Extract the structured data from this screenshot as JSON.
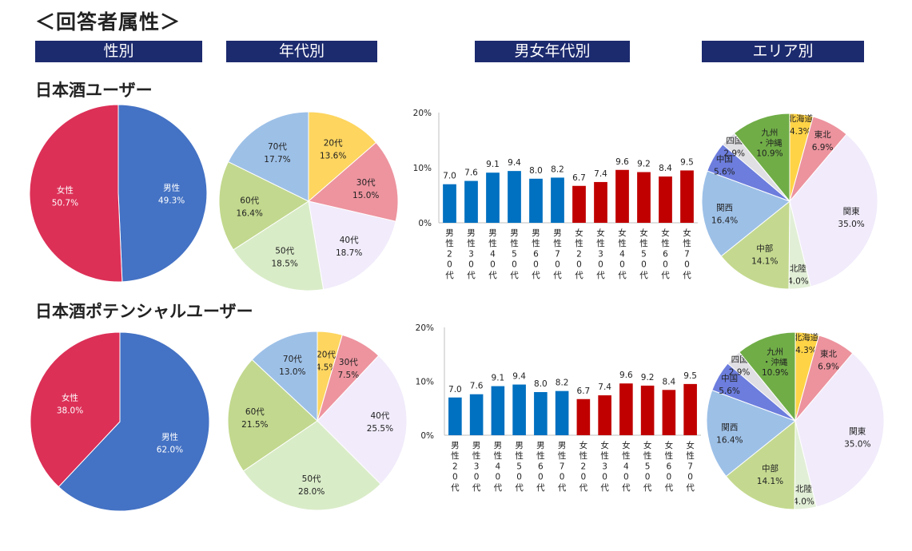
{
  "title": "＜回答者属性＞",
  "headers": {
    "gender": "性別",
    "age": "年代別",
    "gender_age": "男女年代別",
    "area": "エリア別"
  },
  "sections": [
    {
      "name": "日本酒ユーザー",
      "gender": {
        "type": "pie",
        "slices": [
          {
            "label": "男性",
            "value": 49.3,
            "pct": "49.3%",
            "color": "#4472c4"
          },
          {
            "label": "女性",
            "value": 50.7,
            "pct": "50.7%",
            "color": "#dc3057"
          }
        ]
      },
      "age": {
        "type": "pie",
        "slices": [
          {
            "label": "20代",
            "value": 13.6,
            "pct": "13.6%",
            "color": "#fdd55f"
          },
          {
            "label": "30代",
            "value": 15.0,
            "pct": "15.0%",
            "color": "#ed949f"
          },
          {
            "label": "40代",
            "value": 18.7,
            "pct": "18.7%",
            "color": "#f1ebfb"
          },
          {
            "label": "50代",
            "value": 18.5,
            "pct": "18.5%",
            "color": "#d9ecc8"
          },
          {
            "label": "60代",
            "value": 16.4,
            "pct": "16.4%",
            "color": "#c2d88e"
          },
          {
            "label": "70代",
            "value": 17.7,
            "pct": "17.7%",
            "color": "#9dc0e7"
          }
        ]
      },
      "gender_age": {
        "type": "bar",
        "ylim": [
          0,
          20
        ],
        "ticks": [
          "0%",
          "10%",
          "20%"
        ],
        "categories": [
          "男性20代",
          "男性30代",
          "男性40代",
          "男性50代",
          "男性60代",
          "男性70代",
          "女性20代",
          "女性30代",
          "女性40代",
          "女性50代",
          "女性60代",
          "女性70代"
        ],
        "values": [
          7.0,
          7.6,
          9.1,
          9.4,
          8.0,
          8.2,
          6.7,
          7.4,
          9.6,
          9.2,
          8.4,
          9.5
        ],
        "colors": [
          "#0070c0",
          "#0070c0",
          "#0070c0",
          "#0070c0",
          "#0070c0",
          "#0070c0",
          "#c00000",
          "#c00000",
          "#c00000",
          "#c00000",
          "#c00000",
          "#c00000"
        ]
      },
      "area": {
        "type": "pie",
        "slices": [
          {
            "label": "北海道",
            "value": 4.3,
            "pct": "4.3%",
            "color": "#ffd346"
          },
          {
            "label": "東北",
            "value": 6.9,
            "pct": "6.9%",
            "color": "#ec939e"
          },
          {
            "label": "関東",
            "value": 35.0,
            "pct": "35.0%",
            "color": "#f1ebfb"
          },
          {
            "label": "北陸",
            "value": 4.0,
            "pct": "4.0%",
            "color": "#e2efd7"
          },
          {
            "label": "中部",
            "value": 14.1,
            "pct": "14.1%",
            "color": "#c4d98f"
          },
          {
            "label": "関西",
            "value": 16.4,
            "pct": "16.4%",
            "color": "#9dc0e7"
          },
          {
            "label": "中国",
            "value": 5.6,
            "pct": "5.6%",
            "color": "#6c7ddd"
          },
          {
            "label": "四国",
            "value": 2.9,
            "pct": "2.9%",
            "color": "#dfdfe4"
          },
          {
            "label": "九州・沖縄",
            "value": 10.9,
            "pct": "10.9%",
            "color": "#70ad47"
          }
        ]
      }
    },
    {
      "name": "日本酒ポテンシャルユーザー",
      "gender": {
        "type": "pie",
        "slices": [
          {
            "label": "男性",
            "value": 62.0,
            "pct": "62.0%",
            "color": "#4472c4"
          },
          {
            "label": "女性",
            "value": 38.0,
            "pct": "38.0%",
            "color": "#dc3057"
          }
        ]
      },
      "age": {
        "type": "pie",
        "slices": [
          {
            "label": "20代",
            "value": 4.5,
            "pct": "4.5%",
            "color": "#fdd55f"
          },
          {
            "label": "30代",
            "value": 7.5,
            "pct": "7.5%",
            "color": "#ed949f"
          },
          {
            "label": "40代",
            "value": 25.5,
            "pct": "25.5%",
            "color": "#f1ebfb"
          },
          {
            "label": "50代",
            "value": 28.0,
            "pct": "28.0%",
            "color": "#d9ecc8"
          },
          {
            "label": "60代",
            "value": 21.5,
            "pct": "21.5%",
            "color": "#c2d88e"
          },
          {
            "label": "70代",
            "value": 13.0,
            "pct": "13.0%",
            "color": "#9dc0e7"
          }
        ]
      },
      "gender_age": {
        "type": "bar",
        "ylim": [
          0,
          20
        ],
        "ticks": [
          "0%",
          "10%",
          "20%"
        ],
        "categories": [
          "男性20代",
          "男性30代",
          "男性40代",
          "男性50代",
          "男性60代",
          "男性70代",
          "女性20代",
          "女性30代",
          "女性40代",
          "女性50代",
          "女性60代",
          "女性70代"
        ],
        "values": [
          7.0,
          7.6,
          9.1,
          9.4,
          8.0,
          8.2,
          6.7,
          7.4,
          9.6,
          9.2,
          8.4,
          9.5
        ],
        "colors": [
          "#0070c0",
          "#0070c0",
          "#0070c0",
          "#0070c0",
          "#0070c0",
          "#0070c0",
          "#c00000",
          "#c00000",
          "#c00000",
          "#c00000",
          "#c00000",
          "#c00000"
        ]
      },
      "area": {
        "type": "pie",
        "slices": [
          {
            "label": "北海道",
            "value": 4.3,
            "pct": "4.3%",
            "color": "#ffd346"
          },
          {
            "label": "東北",
            "value": 6.9,
            "pct": "6.9%",
            "color": "#ec939e"
          },
          {
            "label": "関東",
            "value": 35.0,
            "pct": "35.0%",
            "color": "#f1ebfb"
          },
          {
            "label": "北陸",
            "value": 4.0,
            "pct": "4.0%",
            "color": "#e2efd7"
          },
          {
            "label": "中部",
            "value": 14.1,
            "pct": "14.1%",
            "color": "#c4d98f"
          },
          {
            "label": "関西",
            "value": 16.4,
            "pct": "16.4%",
            "color": "#9dc0e7"
          },
          {
            "label": "中国",
            "value": 5.6,
            "pct": "5.6%",
            "color": "#6c7ddd"
          },
          {
            "label": "四国",
            "value": 2.9,
            "pct": "2.9%",
            "color": "#dfdfe4"
          },
          {
            "label": "九州・沖縄",
            "value": 10.9,
            "pct": "10.9%",
            "color": "#70ad47"
          }
        ]
      }
    }
  ],
  "chart_data": [
    {
      "type": "pie",
      "title": "日本酒ユーザー 性別",
      "categories": [
        "男性",
        "女性"
      ],
      "values": [
        49.3,
        50.7
      ]
    },
    {
      "type": "pie",
      "title": "日本酒ユーザー 年代別",
      "categories": [
        "20代",
        "30代",
        "40代",
        "50代",
        "60代",
        "70代"
      ],
      "values": [
        13.6,
        15.0,
        18.7,
        18.5,
        16.4,
        17.7
      ]
    },
    {
      "type": "bar",
      "title": "日本酒ユーザー 男女年代別",
      "categories": [
        "男性20代",
        "男性30代",
        "男性40代",
        "男性50代",
        "男性60代",
        "男性70代",
        "女性20代",
        "女性30代",
        "女性40代",
        "女性50代",
        "女性60代",
        "女性70代"
      ],
      "values": [
        7.0,
        7.6,
        9.1,
        9.4,
        8.0,
        8.2,
        6.7,
        7.4,
        9.6,
        9.2,
        8.4,
        9.5
      ],
      "ylim": [
        0,
        20
      ]
    },
    {
      "type": "pie",
      "title": "日本酒ユーザー エリア別",
      "categories": [
        "北海道",
        "東北",
        "関東",
        "北陸",
        "中部",
        "関西",
        "中国",
        "四国",
        "九州・沖縄"
      ],
      "values": [
        4.3,
        6.9,
        35.0,
        4.0,
        14.1,
        16.4,
        5.6,
        2.9,
        10.9
      ]
    },
    {
      "type": "pie",
      "title": "日本酒ポテンシャルユーザー 性別",
      "categories": [
        "男性",
        "女性"
      ],
      "values": [
        62.0,
        38.0
      ]
    },
    {
      "type": "pie",
      "title": "日本酒ポテンシャルユーザー 年代別",
      "categories": [
        "20代",
        "30代",
        "40代",
        "50代",
        "60代",
        "70代"
      ],
      "values": [
        4.5,
        7.5,
        25.5,
        28.0,
        21.5,
        13.0
      ]
    },
    {
      "type": "bar",
      "title": "日本酒ポテンシャルユーザー 男女年代別",
      "categories": [
        "男性20代",
        "男性30代",
        "男性40代",
        "男性50代",
        "男性60代",
        "男性70代",
        "女性20代",
        "女性30代",
        "女性40代",
        "女性50代",
        "女性60代",
        "女性70代"
      ],
      "values": [
        7.0,
        7.6,
        9.1,
        9.4,
        8.0,
        8.2,
        6.7,
        7.4,
        9.6,
        9.2,
        8.4,
        9.5
      ],
      "ylim": [
        0,
        20
      ]
    },
    {
      "type": "pie",
      "title": "日本酒ポテンシャルユーザー エリア別",
      "categories": [
        "北海道",
        "東北",
        "関東",
        "北陸",
        "中部",
        "関西",
        "中国",
        "四国",
        "九州・沖縄"
      ],
      "values": [
        4.3,
        6.9,
        35.0,
        4.0,
        14.1,
        16.4,
        5.6,
        2.9,
        10.9
      ]
    }
  ]
}
